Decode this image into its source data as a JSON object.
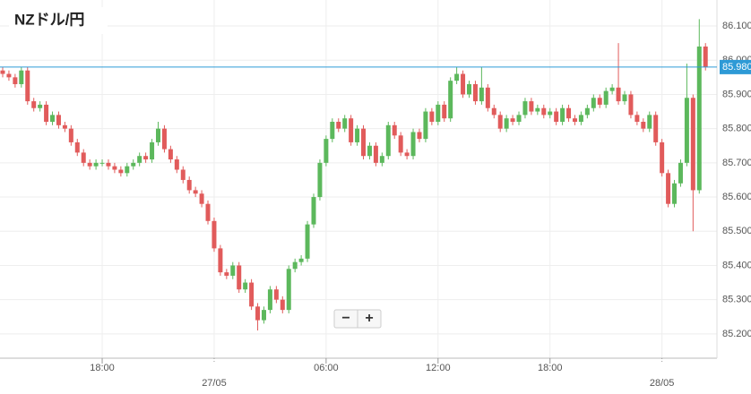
{
  "chart_data": {
    "type": "candlestick",
    "title": "NZドル/円",
    "categories": [
      null,
      null,
      null,
      null,
      null,
      null,
      null,
      null,
      null,
      null,
      null,
      null,
      null,
      null,
      null,
      null,
      "18:00",
      null,
      null,
      null,
      null,
      null,
      null,
      null,
      null,
      null,
      null,
      null,
      null,
      null,
      null,
      null,
      null,
      null,
      "27/05",
      null,
      null,
      null,
      null,
      null,
      null,
      null,
      null,
      null,
      null,
      null,
      null,
      null,
      null,
      null,
      null,
      null,
      "06:00",
      null,
      null,
      null,
      null,
      null,
      null,
      null,
      null,
      null,
      null,
      null,
      null,
      null,
      null,
      null,
      null,
      null,
      "12:00",
      null,
      null,
      null,
      null,
      null,
      null,
      null,
      null,
      null,
      null,
      null,
      null,
      null,
      null,
      null,
      null,
      null,
      "18:00",
      null,
      null,
      null,
      null,
      null,
      null,
      null,
      null,
      null,
      null,
      null,
      null,
      null,
      null,
      null,
      null,
      null,
      "28/05",
      null,
      null,
      null,
      null,
      null,
      null,
      null
    ],
    "open": [
      85.97,
      85.96,
      85.95,
      85.93,
      85.97,
      85.88,
      85.86,
      85.87,
      85.82,
      85.84,
      85.81,
      85.8,
      85.76,
      85.73,
      85.7,
      85.69,
      85.7,
      85.7,
      85.69,
      85.68,
      85.67,
      85.69,
      85.7,
      85.72,
      85.71,
      85.76,
      85.8,
      85.74,
      85.71,
      85.68,
      85.65,
      85.62,
      85.61,
      85.58,
      85.53,
      85.45,
      85.38,
      85.37,
      85.4,
      85.33,
      85.35,
      85.28,
      85.24,
      85.27,
      85.33,
      85.3,
      85.27,
      85.39,
      85.41,
      85.42,
      85.52,
      85.6,
      85.7,
      85.77,
      85.82,
      85.8,
      85.83,
      85.76,
      85.8,
      85.72,
      85.75,
      85.7,
      85.72,
      85.81,
      85.78,
      85.73,
      85.72,
      85.79,
      85.77,
      85.85,
      85.82,
      85.87,
      85.83,
      85.94,
      85.96,
      85.9,
      85.93,
      85.88,
      85.92,
      85.86,
      85.84,
      85.8,
      85.83,
      85.82,
      85.84,
      85.88,
      85.85,
      85.86,
      85.84,
      85.85,
      85.82,
      85.86,
      85.83,
      85.82,
      85.84,
      85.86,
      85.89,
      85.87,
      85.91,
      85.92,
      85.88,
      85.9,
      85.84,
      85.82,
      85.8,
      85.84,
      85.76,
      85.67,
      85.58,
      85.64,
      85.7,
      85.89,
      85.62,
      86.04
    ],
    "high": [
      85.98,
      85.97,
      85.96,
      85.98,
      85.98,
      85.89,
      85.88,
      85.88,
      85.85,
      85.85,
      85.82,
      85.81,
      85.77,
      85.74,
      85.71,
      85.71,
      85.71,
      85.71,
      85.7,
      85.69,
      85.7,
      85.71,
      85.73,
      85.73,
      85.77,
      85.82,
      85.81,
      85.75,
      85.72,
      85.69,
      85.66,
      85.63,
      85.62,
      85.59,
      85.54,
      85.46,
      85.39,
      85.41,
      85.41,
      85.36,
      85.36,
      85.29,
      85.28,
      85.34,
      85.34,
      85.31,
      85.4,
      85.42,
      85.43,
      85.53,
      85.61,
      85.71,
      85.78,
      85.83,
      85.83,
      85.84,
      85.84,
      85.81,
      85.81,
      85.76,
      85.76,
      85.73,
      85.82,
      85.82,
      85.79,
      85.74,
      85.8,
      85.8,
      85.86,
      85.86,
      85.88,
      85.88,
      85.95,
      85.98,
      85.97,
      85.94,
      85.94,
      85.98,
      85.93,
      85.87,
      85.85,
      85.84,
      85.84,
      85.85,
      85.89,
      85.89,
      85.87,
      85.87,
      85.86,
      85.86,
      85.87,
      85.87,
      85.84,
      85.85,
      85.87,
      85.9,
      85.9,
      85.92,
      85.93,
      86.05,
      85.91,
      85.91,
      85.85,
      85.83,
      85.85,
      85.85,
      85.77,
      85.68,
      85.65,
      85.71,
      85.99,
      85.9,
      86.12,
      86.05
    ],
    "low": [
      85.95,
      85.94,
      85.92,
      85.92,
      85.87,
      85.85,
      85.85,
      85.81,
      85.81,
      85.8,
      85.79,
      85.75,
      85.72,
      85.69,
      85.68,
      85.68,
      85.69,
      85.68,
      85.67,
      85.66,
      85.66,
      85.68,
      85.69,
      85.7,
      85.7,
      85.75,
      85.73,
      85.7,
      85.67,
      85.64,
      85.61,
      85.6,
      85.57,
      85.52,
      85.44,
      85.37,
      85.36,
      85.36,
      85.32,
      85.32,
      85.27,
      85.21,
      85.23,
      85.26,
      85.29,
      85.26,
      85.26,
      85.38,
      85.4,
      85.41,
      85.51,
      85.59,
      85.69,
      85.76,
      85.79,
      85.79,
      85.75,
      85.75,
      85.71,
      85.71,
      85.69,
      85.69,
      85.71,
      85.77,
      85.72,
      85.71,
      85.71,
      85.76,
      85.76,
      85.81,
      85.81,
      85.82,
      85.82,
      85.93,
      85.89,
      85.89,
      85.87,
      85.87,
      85.85,
      85.83,
      85.79,
      85.79,
      85.81,
      85.81,
      85.83,
      85.84,
      85.84,
      85.83,
      85.83,
      85.81,
      85.81,
      85.82,
      85.81,
      85.81,
      85.83,
      85.85,
      85.86,
      85.86,
      85.9,
      85.87,
      85.87,
      85.83,
      85.81,
      85.79,
      85.79,
      85.75,
      85.66,
      85.57,
      85.57,
      85.63,
      85.69,
      85.5,
      85.61,
      85.97
    ],
    "close": [
      85.96,
      85.95,
      85.93,
      85.97,
      85.88,
      85.86,
      85.87,
      85.82,
      85.84,
      85.81,
      85.8,
      85.76,
      85.73,
      85.7,
      85.69,
      85.7,
      85.7,
      85.69,
      85.68,
      85.67,
      85.69,
      85.7,
      85.72,
      85.71,
      85.76,
      85.8,
      85.74,
      85.71,
      85.68,
      85.65,
      85.62,
      85.61,
      85.58,
      85.53,
      85.45,
      85.38,
      85.37,
      85.4,
      85.33,
      85.35,
      85.28,
      85.24,
      85.27,
      85.33,
      85.3,
      85.27,
      85.39,
      85.41,
      85.42,
      85.52,
      85.6,
      85.7,
      85.77,
      85.82,
      85.8,
      85.83,
      85.76,
      85.8,
      85.72,
      85.75,
      85.7,
      85.72,
      85.81,
      85.78,
      85.73,
      85.72,
      85.79,
      85.77,
      85.85,
      85.82,
      85.87,
      85.83,
      85.94,
      85.96,
      85.9,
      85.93,
      85.88,
      85.92,
      85.86,
      85.84,
      85.8,
      85.83,
      85.82,
      85.84,
      85.88,
      85.85,
      85.86,
      85.84,
      85.85,
      85.82,
      85.86,
      85.83,
      85.82,
      85.84,
      85.86,
      85.89,
      85.87,
      85.91,
      85.92,
      85.88,
      85.9,
      85.84,
      85.82,
      85.8,
      85.84,
      85.76,
      85.67,
      85.58,
      85.64,
      85.7,
      85.89,
      85.62,
      86.04,
      85.98
    ],
    "up_color": "#5cb85c",
    "down_color": "#e15b5b",
    "ylim": [
      85.129,
      86.176
    ],
    "yticks": [
      {
        "value": 85.2,
        "label": "85.200"
      },
      {
        "value": 85.3,
        "label": "85.300"
      },
      {
        "value": 85.4,
        "label": "85.400"
      },
      {
        "value": 85.5,
        "label": "85.500"
      },
      {
        "value": 85.6,
        "label": "85.600"
      },
      {
        "value": 85.7,
        "label": "85.700"
      },
      {
        "value": 85.8,
        "label": "85.800"
      },
      {
        "value": 85.9,
        "label": "85.900"
      },
      {
        "value": 86.0,
        "label": "86.000"
      },
      {
        "value": 86.1,
        "label": "86.100"
      }
    ],
    "last_price": {
      "value": 85.98,
      "label": "85.980"
    },
    "last_price_color": "#2e9ad6",
    "grid": true,
    "zoom_out": "−",
    "zoom_in": "+"
  }
}
